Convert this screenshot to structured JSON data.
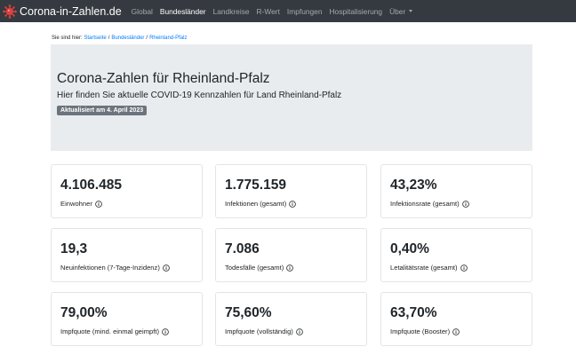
{
  "navbar": {
    "brand": "Corona-in-Zahlen.de",
    "logo_icon": "virus-logo-icon",
    "items": [
      {
        "label": "Global",
        "active": false
      },
      {
        "label": "Bundesländer",
        "active": true
      },
      {
        "label": "Landkreise",
        "active": false
      },
      {
        "label": "R-Wert",
        "active": false
      },
      {
        "label": "Impfungen",
        "active": false
      },
      {
        "label": "Hospitalisierung",
        "active": false
      },
      {
        "label": "Über",
        "active": false,
        "dropdown": true
      }
    ]
  },
  "breadcrumb": {
    "prefix": "Sie sind hier:",
    "items": [
      "Startseite",
      "Bundesländer",
      "Rheinland-Pfalz"
    ],
    "separator": "/"
  },
  "header": {
    "title": "Corona-Zahlen für Rheinland-Pfalz",
    "lead": "Hier finden Sie aktuelle COVID-19 Kennzahlen für Land Rheinland-Pfalz",
    "badge": "Aktualisiert am 4. April 2023"
  },
  "stats": [
    {
      "value": "4.106.485",
      "label": "Einwohner"
    },
    {
      "value": "1.775.159",
      "label": "Infektionen (gesamt)"
    },
    {
      "value": "43,23%",
      "label": "Infektionsrate (gesamt)"
    },
    {
      "value": "19,3",
      "label": "Neuinfektionen (7-Tage-Inzidenz)"
    },
    {
      "value": "7.086",
      "label": "Todesfälle (gesamt)"
    },
    {
      "value": "0,40%",
      "label": "Letalitätsrate (gesamt)"
    },
    {
      "value": "79,00%",
      "label": "Impfquote (mind. einmal geimpft)"
    },
    {
      "value": "75,60%",
      "label": "Impfquote (vollständig)"
    },
    {
      "value": "63,70%",
      "label": "Impfquote (Booster)"
    }
  ],
  "colors": {
    "navbar_bg": "#343a40",
    "link": "#007bff",
    "jumbotron_bg": "#e9ecef",
    "badge_bg": "#6c757d",
    "logo": "#e0413f"
  }
}
